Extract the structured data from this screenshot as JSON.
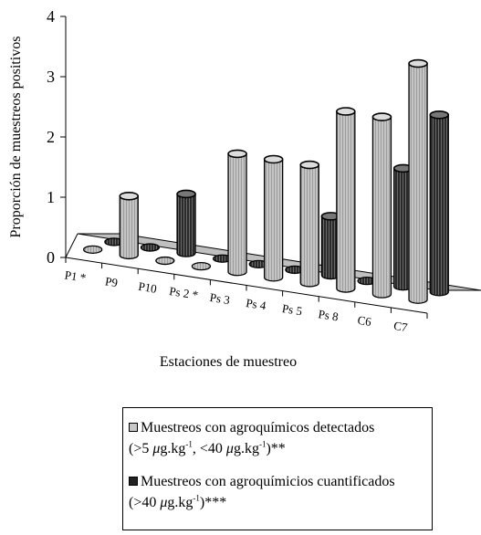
{
  "chart_data": {
    "type": "bar",
    "subtype": "3d-cylinder",
    "ylabel": "Proporción de muestreos positivos",
    "xlabel": "Estaciones de muestreo",
    "ylim": [
      0,
      4
    ],
    "yticks": [
      "0",
      "1",
      "2",
      "3",
      "4"
    ],
    "categories": [
      "P1 *",
      "P9",
      "P10",
      "Ps 2 *",
      "Ps 3",
      "Ps 4",
      "Ps 5",
      "Ps 8",
      "C6",
      "C7"
    ],
    "series": [
      {
        "name": "Muestreos con agroquímicos detectados (>5 μg.kg-1, <40 μg.kg-1)**",
        "values": [
          0,
          1,
          0,
          0,
          2,
          2,
          2,
          3,
          3,
          4
        ],
        "color": "#c8c8c8"
      },
      {
        "name": "Muestreos con agroquímicios cuantificados (>40 μg.kg-1)***",
        "values": [
          0,
          0,
          1,
          0,
          0,
          0,
          1,
          0,
          2,
          3
        ],
        "color": "#3a3a3a"
      }
    ]
  },
  "legend": {
    "detected": {
      "line1": "Muestreos con agroquímicos detectados",
      "line2_a": "(>5 ",
      "unit_mu": "μ",
      "unit_g": "g.kg",
      "sup": "-1",
      "mid": ", <40 ",
      "end": ")**"
    },
    "quantified": {
      "line1": "Muestreos con agroquímicios cuantificados",
      "line2_a": "(>40 ",
      "unit_mu": "μ",
      "unit_g": "g.kg",
      "sup": "-1",
      "end": ")***"
    }
  }
}
